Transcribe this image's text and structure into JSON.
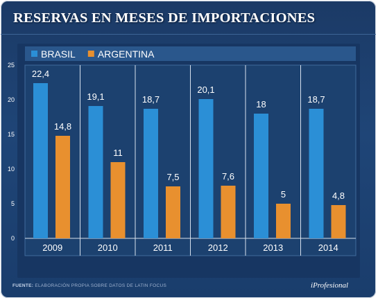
{
  "header": {
    "title": "RESERVAS EN MESES DE IMPORTACIONES"
  },
  "footer": {
    "source_label": "FUENTE:",
    "source_text": "ELABORACIÓN PROPIA SOBRE DATOS DE LATIN FOCUS",
    "brand": "iProfesional"
  },
  "colors": {
    "brasil": "#2b8fd6",
    "argentina": "#e8902f",
    "background": "#1f4577",
    "plot_background": "#1c416f",
    "legend_band": "#2a578c"
  },
  "chart_data": {
    "type": "bar",
    "title": "RESERVAS EN MESES DE IMPORTACIONES",
    "categories": [
      "2009",
      "2010",
      "2011",
      "2012",
      "2013",
      "2014"
    ],
    "series": [
      {
        "name": "BRASIL",
        "values": [
          22.4,
          19.1,
          18.7,
          20.1,
          18,
          18.7
        ],
        "labels": [
          "22,4",
          "19,1",
          "18,7",
          "20,1",
          "18",
          "18,7"
        ]
      },
      {
        "name": "ARGENTINA",
        "values": [
          14.8,
          11,
          7.5,
          7.6,
          5,
          4.8
        ],
        "labels": [
          "14,8",
          "11",
          "7,5",
          "7,6",
          "5",
          "4,8"
        ]
      }
    ],
    "ylim": [
      0,
      25
    ],
    "yticks": [
      0,
      5,
      10,
      15,
      20,
      25
    ],
    "xlabel": "",
    "ylabel": "",
    "grid": false,
    "legend_position": "top-left"
  }
}
